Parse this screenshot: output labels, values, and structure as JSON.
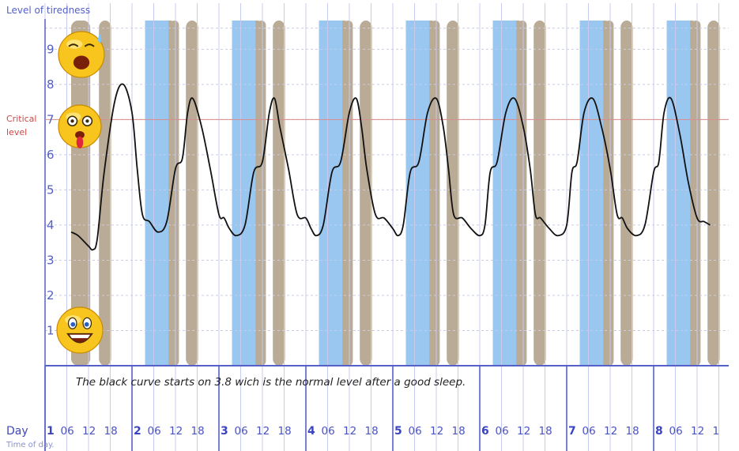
{
  "chart_data": {
    "type": "line",
    "ylabel": "Level of tiredness",
    "xlabel_day": "Day",
    "xlabel_time": "Time of day.",
    "critical_label": [
      "Critical",
      "level"
    ],
    "critical_value": 7,
    "ylim": [
      0,
      10.4
    ],
    "y_ticks": [
      1,
      2,
      3,
      4,
      5,
      6,
      7,
      8,
      9
    ],
    "days": [
      "1",
      "2",
      "3",
      "4",
      "5",
      "6",
      "7",
      "8"
    ],
    "hour_labels": [
      "06",
      "12",
      "18"
    ],
    "last_hour_partial": "1",
    "annotation": "The black curve starts on 3.8 wich is the normal level after a good sleep.",
    "series": [
      {
        "color": "#111111",
        "x": [
          0.3,
          0.38,
          0.5,
          0.55,
          0.6,
          0.68,
          0.8,
          0.9,
          1.0,
          1.06,
          1.12,
          1.2,
          1.3,
          1.4,
          1.5,
          1.58,
          1.64,
          1.7,
          1.8,
          1.9,
          2.0,
          2.06,
          2.12,
          2.2,
          2.3,
          2.4,
          2.5,
          2.58,
          2.64,
          2.7,
          2.8,
          2.9,
          3.0,
          3.06,
          3.12,
          3.2,
          3.3,
          3.4,
          3.5,
          3.58,
          3.64,
          3.7,
          3.8,
          3.9,
          4.0,
          4.06,
          4.12,
          4.2,
          4.3,
          4.4,
          4.5,
          4.58,
          4.64,
          4.7,
          4.8,
          4.9,
          5.0,
          5.06,
          5.12,
          5.2,
          5.3,
          5.4,
          5.5,
          5.58,
          5.64,
          5.7,
          5.8,
          5.9,
          6.0,
          6.06,
          6.12,
          6.2,
          6.3,
          6.4,
          6.5,
          6.58,
          6.64,
          6.7,
          6.8,
          6.9,
          7.0,
          7.06,
          7.12,
          7.2,
          7.3,
          7.4,
          7.5,
          7.58,
          7.65
        ],
        "y": [
          3.8,
          3.7,
          3.4,
          3.3,
          3.6,
          5.5,
          7.5,
          8.0,
          7.2,
          5.6,
          4.3,
          4.1,
          3.8,
          4.1,
          5.6,
          5.9,
          7.2,
          7.6,
          6.8,
          5.6,
          4.3,
          4.2,
          3.9,
          3.7,
          4.0,
          5.5,
          5.8,
          7.2,
          7.6,
          6.8,
          5.6,
          4.3,
          4.2,
          3.9,
          3.7,
          4.0,
          5.5,
          5.8,
          7.2,
          7.6,
          6.8,
          5.6,
          4.3,
          4.2,
          3.9,
          3.7,
          4.0,
          5.5,
          5.8,
          7.2,
          7.6,
          6.8,
          5.6,
          4.3,
          4.2,
          3.9,
          3.7,
          4.0,
          5.5,
          5.8,
          7.2,
          7.6,
          6.8,
          5.6,
          4.3,
          4.2,
          3.9,
          3.7,
          4.0,
          5.5,
          5.8,
          7.2,
          7.6,
          6.8,
          5.6,
          4.3,
          4.2,
          3.9,
          3.7,
          4.0,
          5.5,
          5.8,
          7.2,
          7.6,
          6.6,
          5.2,
          4.2,
          4.1,
          4.0
        ]
      }
    ],
    "colors": {
      "axis": "#5560c8",
      "grid": "#c8cbee",
      "critical": "#d88a8a",
      "sleep_band": "#b9ab96",
      "night_band": "#99c7f0",
      "curve": "#111111"
    },
    "icons": [
      "sweating-face-icon",
      "dizzy-tongue-face-icon",
      "smiling-face-icon"
    ]
  }
}
